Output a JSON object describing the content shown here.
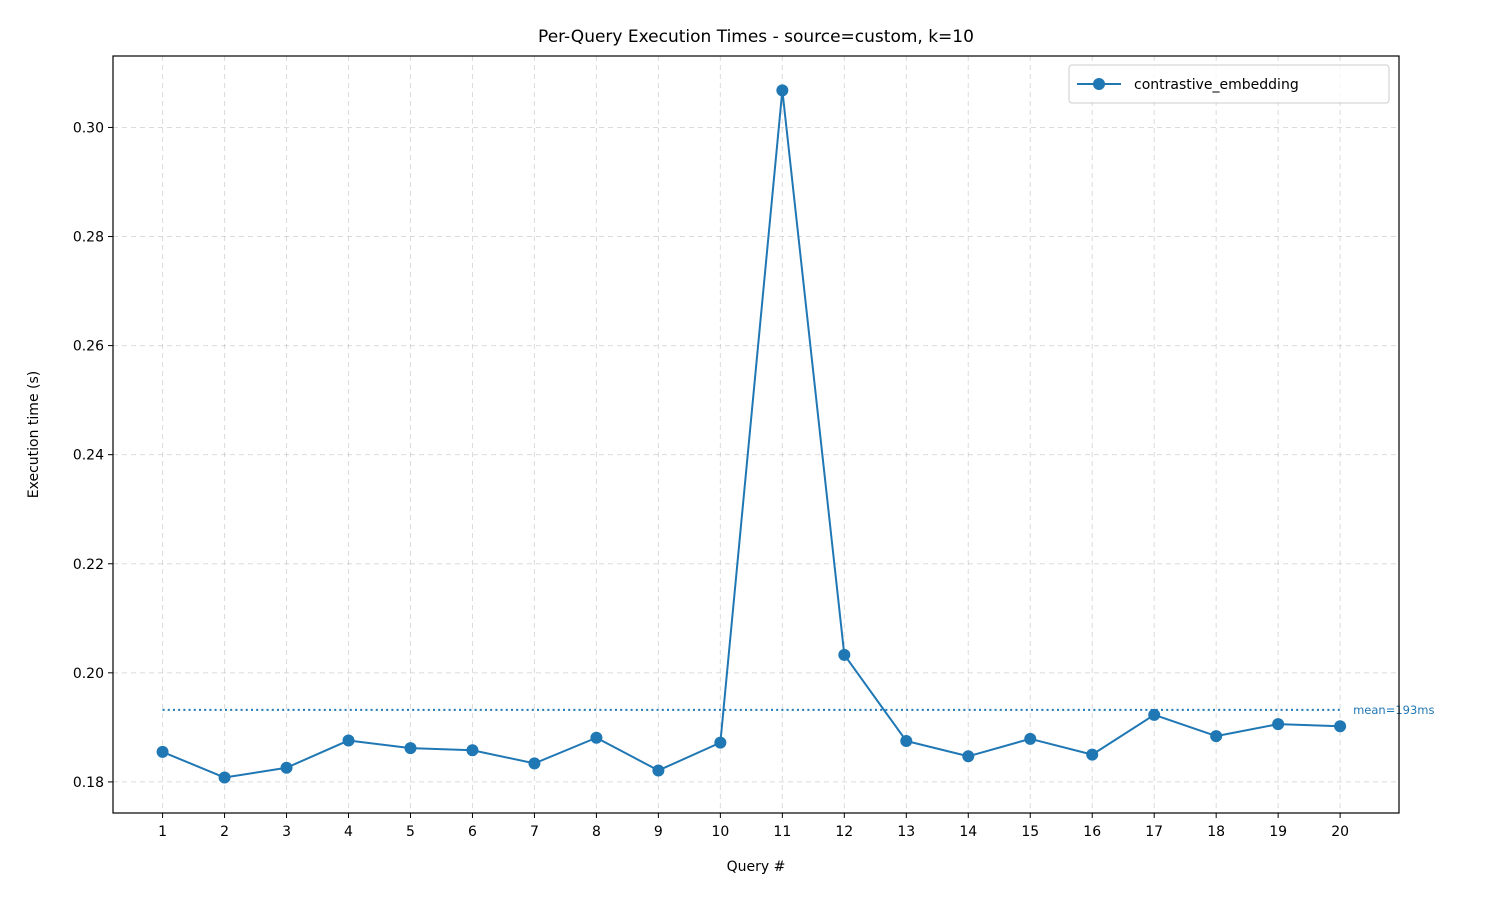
{
  "chart_data": {
    "type": "line",
    "title": "Per-Query Execution Times - source=custom, k=10",
    "xlabel": "Query #",
    "ylabel": "Execution time (s)",
    "x": [
      1,
      2,
      3,
      4,
      5,
      6,
      7,
      8,
      9,
      10,
      11,
      12,
      13,
      14,
      15,
      16,
      17,
      18,
      19,
      20
    ],
    "xticks": [
      "1",
      "2",
      "3",
      "4",
      "5",
      "6",
      "7",
      "8",
      "9",
      "10",
      "11",
      "12",
      "13",
      "14",
      "15",
      "16",
      "17",
      "18",
      "19",
      "20"
    ],
    "yticks": [
      "0.18",
      "0.20",
      "0.22",
      "0.24",
      "0.26",
      "0.28",
      "0.30"
    ],
    "xlim": [
      0.2,
      20.95
    ],
    "ylim": [
      0.1743,
      0.3131
    ],
    "grid": true,
    "legend_position": "top-right",
    "series": [
      {
        "name": "contrastive_embedding",
        "color": "#1f77b4",
        "values": [
          0.1855,
          0.1808,
          0.1826,
          0.1876,
          0.1862,
          0.1858,
          0.1834,
          0.1881,
          0.1821,
          0.1872,
          0.3068,
          0.2033,
          0.1875,
          0.1847,
          0.1879,
          0.185,
          0.1923,
          0.1884,
          0.1906,
          0.1902
        ]
      }
    ],
    "mean_line": {
      "value": 0.1932,
      "label": "mean=193ms",
      "color": "#1f77b4"
    }
  }
}
